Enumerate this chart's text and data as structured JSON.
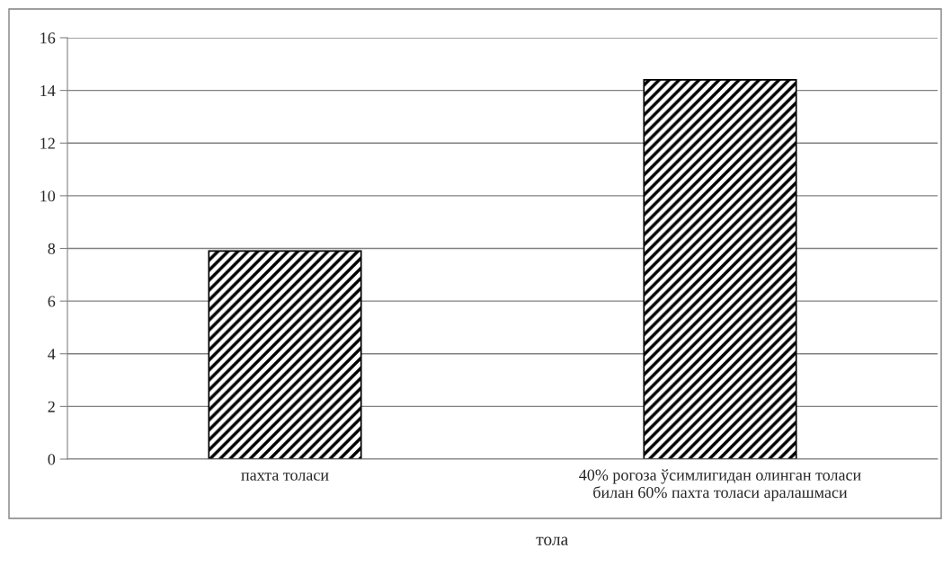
{
  "chart_data": {
    "type": "bar",
    "xlabel": "тола",
    "categories": [
      "пахта толаси",
      "40% рогоза ўсимлигидан олинган толаси\nбилан 60% пахта толаси аралашмаси"
    ],
    "values": [
      7.9,
      14.4
    ],
    "color": "#000000",
    "ylim": [
      0,
      16
    ],
    "yticks": [
      0,
      2,
      4,
      6,
      8,
      10,
      12,
      14,
      16
    ],
    "grid": "y"
  }
}
